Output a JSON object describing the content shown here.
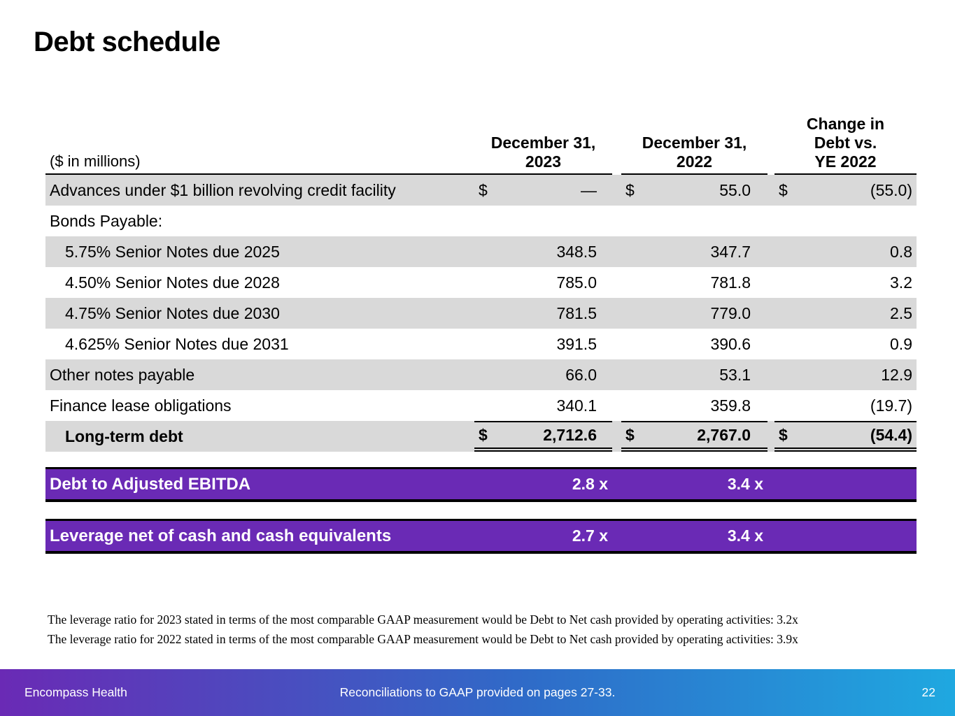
{
  "title": "Debt schedule",
  "table": {
    "unit_label": "($ in millions)",
    "columns": [
      {
        "label": "December 31,\n2023"
      },
      {
        "label": "December 31,\n2022"
      },
      {
        "label": "Change in\nDebt vs.\nYE 2022"
      }
    ],
    "rows": [
      {
        "label": "Advances under $1 billion revolving credit facility",
        "indent": false,
        "shaded": true,
        "bold": false,
        "dollar": true,
        "total": false,
        "values": [
          "—",
          "55.0",
          "(55.0)"
        ]
      },
      {
        "label": "Bonds Payable:",
        "indent": false,
        "shaded": false,
        "bold": false,
        "dollar": false,
        "total": false,
        "values": [
          null,
          null,
          null
        ]
      },
      {
        "label": "5.75% Senior Notes due 2025",
        "indent": true,
        "shaded": true,
        "bold": false,
        "dollar": false,
        "total": false,
        "values": [
          "348.5",
          "347.7",
          "0.8"
        ]
      },
      {
        "label": "4.50% Senior Notes due 2028",
        "indent": true,
        "shaded": false,
        "bold": false,
        "dollar": false,
        "total": false,
        "values": [
          "785.0",
          "781.8",
          "3.2"
        ]
      },
      {
        "label": "4.75% Senior Notes due 2030",
        "indent": true,
        "shaded": true,
        "bold": false,
        "dollar": false,
        "total": false,
        "values": [
          "781.5",
          "779.0",
          "2.5"
        ]
      },
      {
        "label": "4.625% Senior Notes due 2031",
        "indent": true,
        "shaded": false,
        "bold": false,
        "dollar": false,
        "total": false,
        "values": [
          "391.5",
          "390.6",
          "0.9"
        ]
      },
      {
        "label": "Other notes payable",
        "indent": false,
        "shaded": true,
        "bold": false,
        "dollar": false,
        "total": false,
        "values": [
          "66.0",
          "53.1",
          "12.9"
        ]
      },
      {
        "label": "Finance lease obligations",
        "indent": false,
        "shaded": false,
        "bold": false,
        "dollar": false,
        "total": false,
        "values": [
          "340.1",
          "359.8",
          "(19.7)"
        ]
      },
      {
        "label": "Long-term debt",
        "indent": true,
        "shaded": true,
        "bold": true,
        "dollar": true,
        "total": true,
        "values": [
          "2,712.6",
          "2,767.0",
          "(54.4)"
        ]
      }
    ],
    "dollar_sign": "$"
  },
  "ratio_bars": [
    {
      "label": "Debt to Adjusted EBITDA",
      "values": [
        "2.8 x",
        "3.4 x"
      ]
    },
    {
      "label": "Leverage net of cash and cash equivalents",
      "values": [
        "2.7 x",
        "3.4 x"
      ]
    }
  ],
  "footnotes": [
    "The leverage ratio for 2023 stated in terms of the most comparable GAAP measurement would be Debt to Net cash provided by operating activities:  3.2x",
    "The leverage ratio for 2022 stated in terms of the most comparable GAAP measurement would be Debt to Net cash provided by operating activities:  3.9x"
  ],
  "footer": {
    "brand": "Encompass Health",
    "note": "Reconciliations to GAAP provided on pages 27-33.",
    "page": "22"
  },
  "colors": {
    "purple": "#6a2ab5",
    "cyan": "#1fa8e0",
    "row_gray": "#d9d9d9"
  }
}
